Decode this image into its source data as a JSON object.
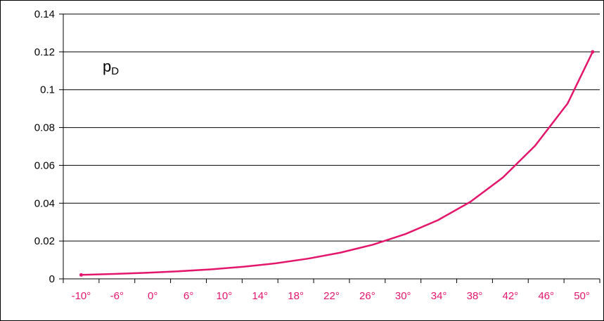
{
  "chart_data": {
    "type": "line",
    "annotation": {
      "main": "p",
      "sub": "D"
    },
    "x_categories": [
      "-10°",
      "-6°",
      "0°",
      "6°",
      "10°",
      "14°",
      "18°",
      "22°",
      "26°",
      "30°",
      "34°",
      "38°",
      "42°",
      "46°",
      "50°"
    ],
    "y_ticks": [
      "0",
      "0.02",
      "0.04",
      "0.06",
      "0.08",
      "0.1",
      "0.12",
      "0.14"
    ],
    "ylim": [
      0,
      0.14
    ],
    "grid": true,
    "series": [
      {
        "values": [
          0.0021,
          0.0026,
          0.0032,
          0.004,
          0.005,
          0.0064,
          0.0082,
          0.0107,
          0.0139,
          0.0181,
          0.0237,
          0.031,
          0.0407,
          0.0535,
          0.0704,
          0.0927,
          0.12
        ],
        "x_positions": [
          0,
          0.907,
          1.813,
          2.72,
          3.627,
          4.533,
          5.44,
          6.347,
          7.253,
          8.16,
          9.067,
          9.973,
          10.88,
          11.787,
          12.693,
          13.6,
          14.3
        ]
      }
    ],
    "colors": {
      "line": "#e3166c",
      "x_tick_text": "#e3166c",
      "grid": "#000000"
    }
  }
}
